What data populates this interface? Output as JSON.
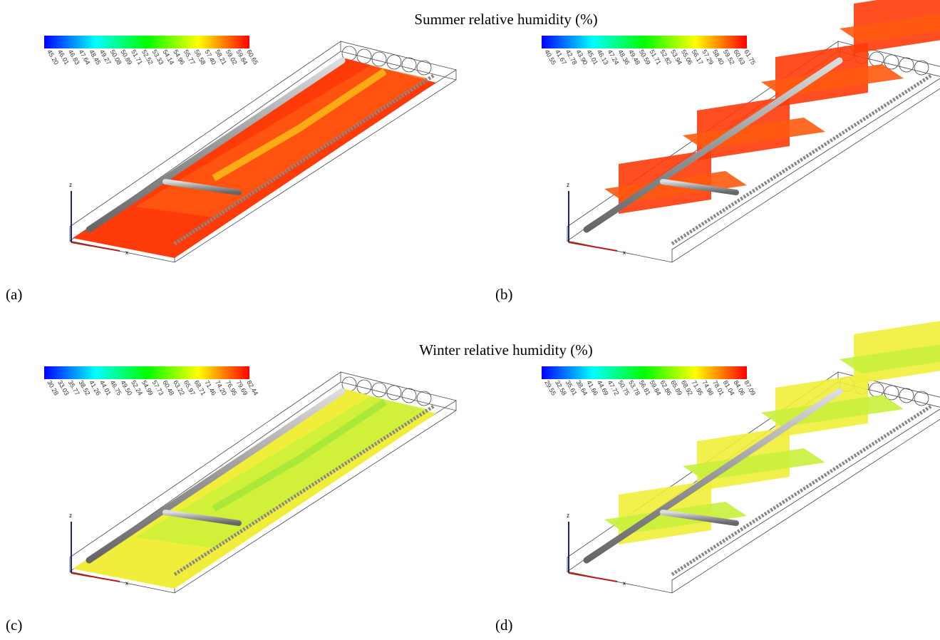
{
  "figure": {
    "rows": [
      {
        "title": "Summer relative humidity (%)",
        "panels": [
          {
            "label": "(a)",
            "triad": [
              "z",
              "x"
            ],
            "colorbar_labels": [
              "45.20",
              "46.01",
              "46.83",
              "47.64",
              "48.45",
              "49.27",
              "50.08",
              "50.89",
              "51.71",
              "52.52",
              "53.33",
              "54.14",
              "54.96",
              "55.77",
              "56.58",
              "57.40",
              "58.21",
              "59.02",
              "59.84",
              "60.65"
            ]
          },
          {
            "label": "(b)",
            "triad": [
              "z",
              "x"
            ],
            "colorbar_labels": [
              "40.55",
              "41.67",
              "42.78",
              "43.90",
              "45.01",
              "46.13",
              "47.24",
              "48.36",
              "49.48",
              "50.59",
              "51.71",
              "52.82",
              "53.94",
              "55.06",
              "56.17",
              "57.29",
              "58.40",
              "59.52",
              "60.63",
              "61.75"
            ]
          }
        ]
      },
      {
        "title": "Winter relative humidity (%)",
        "panels": [
          {
            "label": "(c)",
            "triad": [
              "z",
              "x"
            ],
            "colorbar_labels": [
              "30.28",
              "33.03",
              "35.77",
              "38.52",
              "41.26",
              "44.01",
              "46.75",
              "49.50",
              "52.24",
              "54.99",
              "57.73",
              "60.48",
              "63.22",
              "65.97",
              "68.71",
              "71.46",
              "74.20",
              "76.95",
              "79.69",
              "82.44"
            ]
          },
          {
            "label": "(d)",
            "triad": [
              "z",
              "x"
            ],
            "colorbar_labels": [
              "29.55",
              "32.58",
              "35.61",
              "38.64",
              "41.66",
              "44.69",
              "47.72",
              "50.75",
              "53.78",
              "56.81",
              "59.84",
              "62.86",
              "65.89",
              "68.92",
              "71.95",
              "74.98",
              "78.01",
              "81.04",
              "84.06",
              "87.09"
            ]
          }
        ]
      }
    ]
  }
}
